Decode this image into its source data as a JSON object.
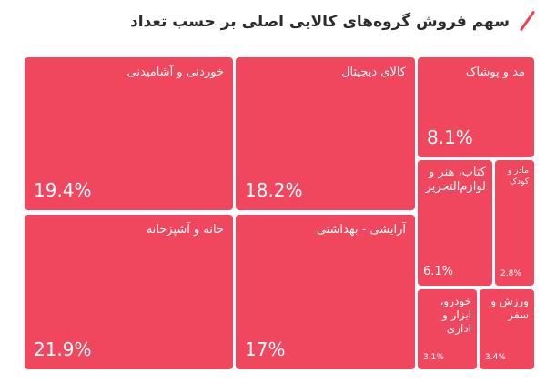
{
  "chart_data": {
    "type": "treemap",
    "title": "سهم فروش گروه‌های کالایی اصلی بر حسب تعداد",
    "items": [
      {
        "label": "خوردنی و آشامیدنی",
        "value": 19.4,
        "value_label": "19.4%"
      },
      {
        "label": "کالای دیجیتال",
        "value": 18.2,
        "value_label": "18.2%"
      },
      {
        "label": "مد و پوشاک",
        "value": 8.1,
        "value_label": "8.1%"
      },
      {
        "label": "کتاب، هنر و لوازم‌التحریر",
        "value": 6.1,
        "value_label": "6.1%"
      },
      {
        "label": "مادر و کودک",
        "value": 2.8,
        "value_label": "2.8%"
      },
      {
        "label": "خانه و آشپزخانه",
        "value": 21.9,
        "value_label": "21.9%"
      },
      {
        "label": "آرایشی - بهداشتی",
        "value": 17,
        "value_label": "17%"
      },
      {
        "label": "خودرو، ابزار و اداری",
        "value": 3.1,
        "value_label": "3.1%"
      },
      {
        "label": "ورزش و سفر",
        "value": 3.4,
        "value_label": "3.4%"
      }
    ],
    "color": "#f0475f",
    "accent_color": "#ef4056"
  }
}
